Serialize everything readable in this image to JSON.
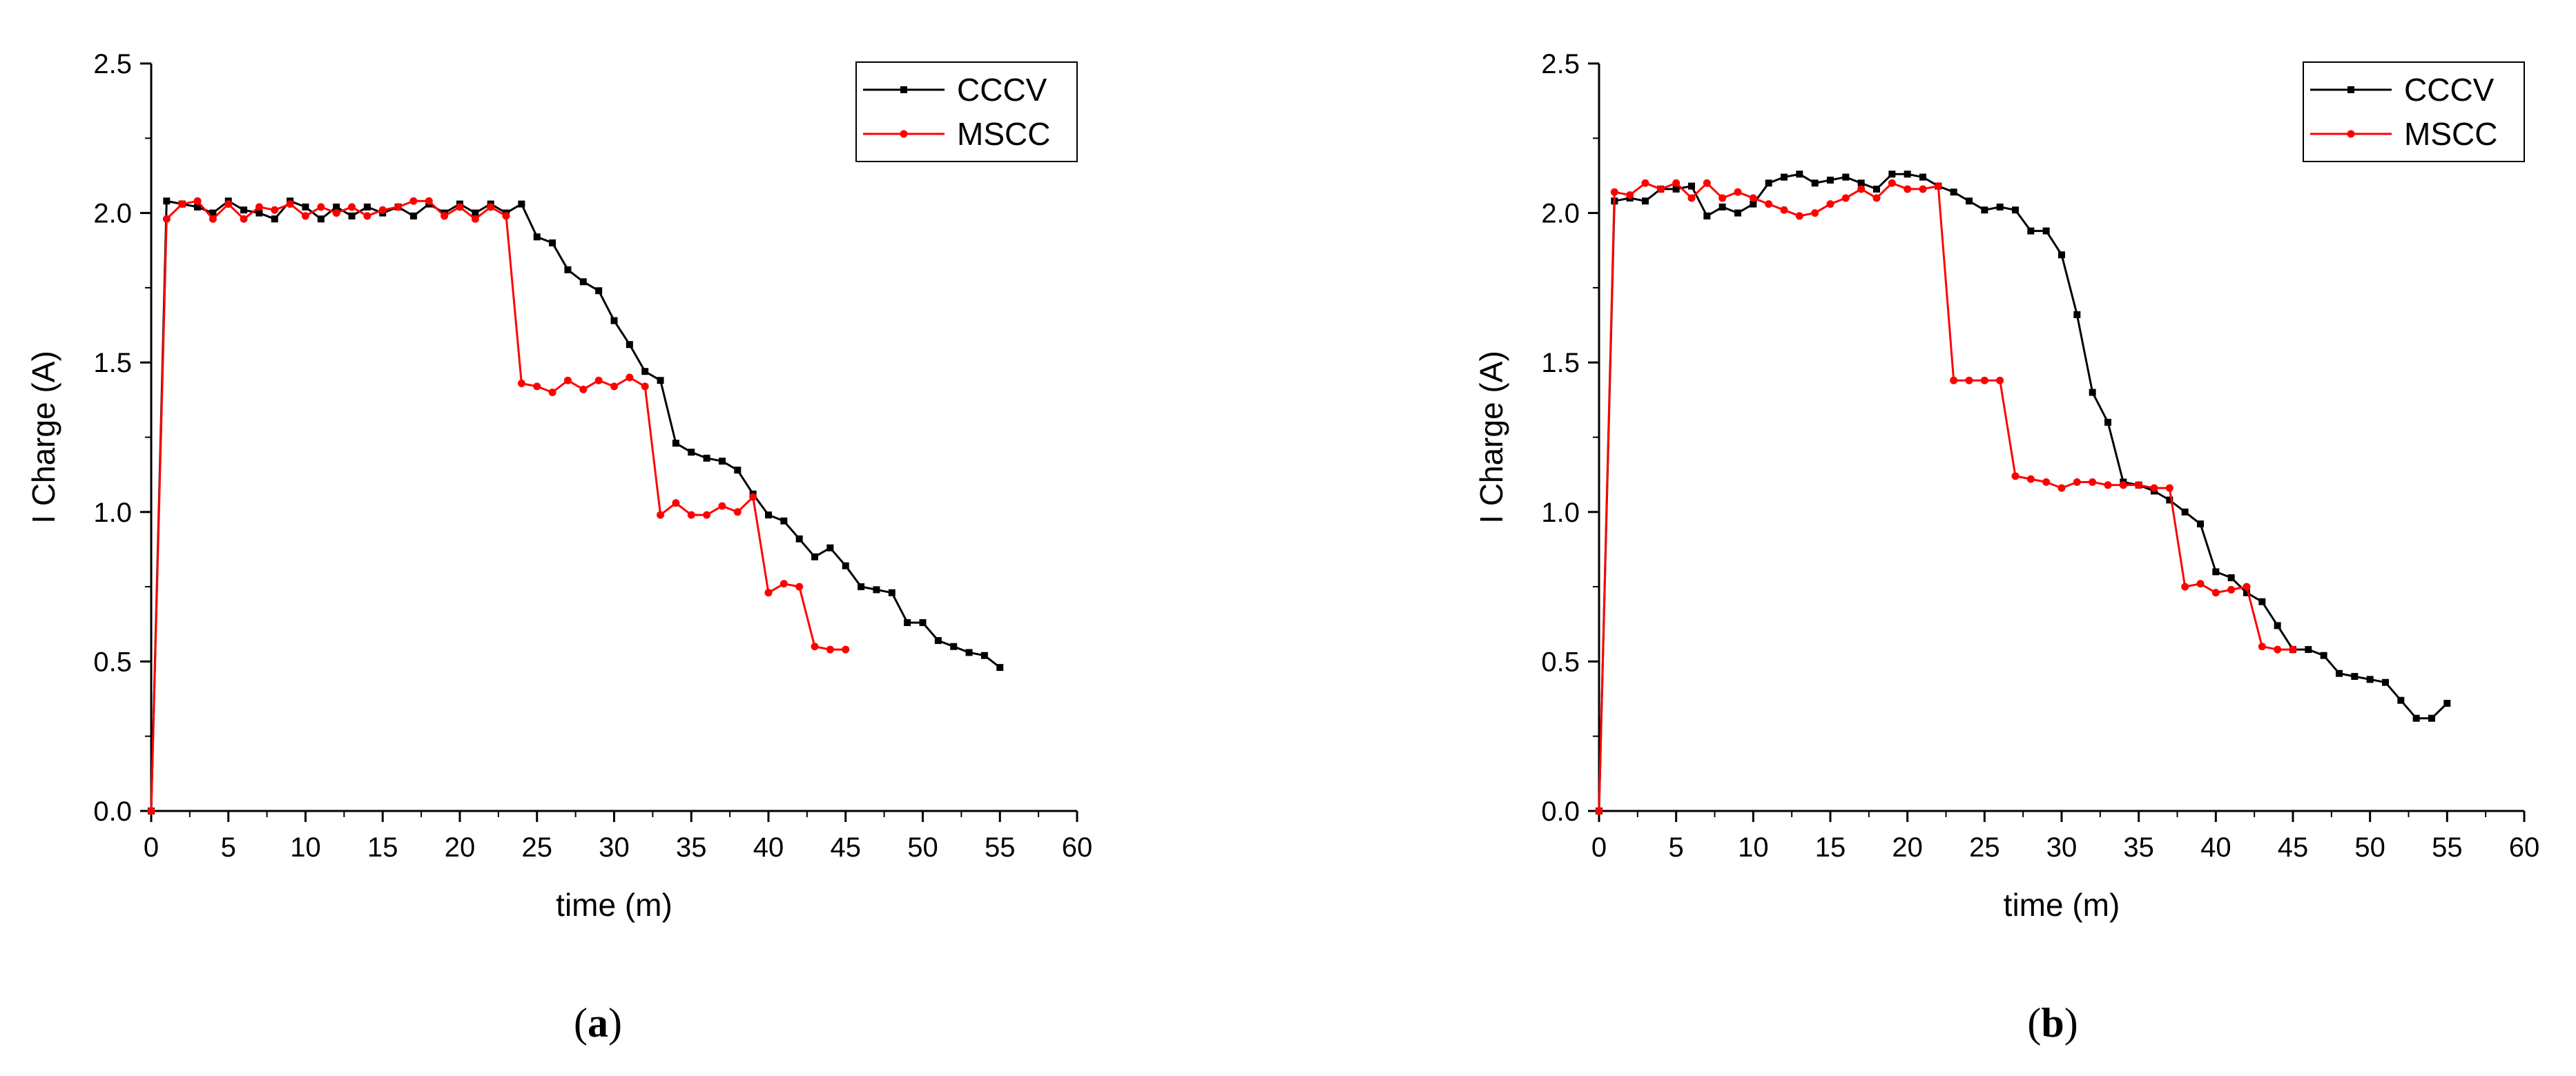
{
  "chart_data": [
    {
      "type": "line",
      "panel_label": "a",
      "title": "",
      "xlabel": "time (m)",
      "ylabel": "I Charge (A)",
      "xlim": [
        0,
        60
      ],
      "ylim": [
        0,
        2.5
      ],
      "xticks": [
        0,
        5,
        10,
        15,
        20,
        25,
        30,
        35,
        40,
        45,
        50,
        55,
        60
      ],
      "yticks": [
        0.0,
        0.5,
        1.0,
        1.5,
        2.0,
        2.5
      ],
      "ytick_labels": [
        "0.0",
        "0.5",
        "1.0",
        "1.5",
        "2.0",
        "2.5"
      ],
      "legend_position": "top-right",
      "grid": false,
      "series": [
        {
          "name": "CCCV",
          "color": "#000000",
          "marker": "square",
          "x": [
            0,
            1,
            2,
            3,
            4,
            5,
            6,
            7,
            8,
            9,
            10,
            11,
            12,
            13,
            14,
            15,
            16,
            17,
            18,
            19,
            20,
            21,
            22,
            23,
            24,
            25,
            26,
            27,
            28,
            29,
            30,
            31,
            32,
            33,
            34,
            35,
            36,
            37,
            38,
            39,
            40,
            41,
            42,
            43,
            44,
            45,
            46,
            47,
            48,
            49,
            50,
            51,
            52,
            53,
            54,
            55
          ],
          "y": [
            0.0,
            2.04,
            2.03,
            2.02,
            2.0,
            2.04,
            2.01,
            2.0,
            1.98,
            2.04,
            2.02,
            1.98,
            2.02,
            1.99,
            2.02,
            2.0,
            2.02,
            1.99,
            2.03,
            2.0,
            2.03,
            2.0,
            2.03,
            2.0,
            2.03,
            1.92,
            1.9,
            1.81,
            1.77,
            1.74,
            1.64,
            1.56,
            1.47,
            1.44,
            1.23,
            1.2,
            1.18,
            1.17,
            1.14,
            1.06,
            0.99,
            0.97,
            0.91,
            0.85,
            0.88,
            0.82,
            0.75,
            0.74,
            0.73,
            0.63,
            0.63,
            0.57,
            0.55,
            0.53,
            0.52,
            0.48
          ]
        },
        {
          "name": "MSCC",
          "color": "#ff0000",
          "marker": "circle",
          "x": [
            0,
            1,
            2,
            3,
            4,
            5,
            6,
            7,
            8,
            9,
            10,
            11,
            12,
            13,
            14,
            15,
            16,
            17,
            18,
            19,
            20,
            21,
            22,
            23,
            24,
            25,
            26,
            27,
            28,
            29,
            30,
            31,
            32,
            33,
            34,
            35,
            36,
            37,
            38,
            39,
            40,
            41,
            42,
            43,
            44,
            45
          ],
          "y": [
            0.0,
            1.98,
            2.03,
            2.04,
            1.98,
            2.03,
            1.98,
            2.02,
            2.01,
            2.03,
            1.99,
            2.02,
            2.0,
            2.02,
            1.99,
            2.01,
            2.02,
            2.04,
            2.04,
            1.99,
            2.02,
            1.98,
            2.02,
            1.99,
            1.43,
            1.42,
            1.4,
            1.44,
            1.41,
            1.44,
            1.42,
            1.45,
            1.42,
            0.99,
            1.03,
            0.99,
            0.99,
            1.02,
            1.0,
            1.05,
            0.73,
            0.76,
            0.75,
            0.55,
            0.54,
            0.54
          ]
        }
      ]
    },
    {
      "type": "line",
      "panel_label": "b",
      "title": "",
      "xlabel": "time (m)",
      "ylabel": "I Charge (A)",
      "xlim": [
        0,
        60
      ],
      "ylim": [
        0,
        2.5
      ],
      "xticks": [
        0,
        5,
        10,
        15,
        20,
        25,
        30,
        35,
        40,
        45,
        50,
        55,
        60
      ],
      "yticks": [
        0.0,
        0.5,
        1.0,
        1.5,
        2.0,
        2.5
      ],
      "ytick_labels": [
        "0.0",
        "0.5",
        "1.0",
        "1.5",
        "2.0",
        "2.5"
      ],
      "legend_position": "top-right",
      "grid": false,
      "series": [
        {
          "name": "CCCV",
          "color": "#000000",
          "marker": "square",
          "x": [
            0,
            1,
            2,
            3,
            4,
            5,
            6,
            7,
            8,
            9,
            10,
            11,
            12,
            13,
            14,
            15,
            16,
            17,
            18,
            19,
            20,
            21,
            22,
            23,
            24,
            25,
            26,
            27,
            28,
            29,
            30,
            31,
            32,
            33,
            34,
            35,
            36,
            37,
            38,
            39,
            40,
            41,
            42,
            43,
            44,
            45,
            46,
            47,
            48,
            49,
            50,
            51,
            52,
            53,
            54,
            55
          ],
          "y": [
            0.0,
            2.04,
            2.05,
            2.04,
            2.08,
            2.08,
            2.09,
            1.99,
            2.02,
            2.0,
            2.03,
            2.1,
            2.12,
            2.13,
            2.1,
            2.11,
            2.12,
            2.1,
            2.08,
            2.13,
            2.13,
            2.12,
            2.09,
            2.07,
            2.04,
            2.01,
            2.02,
            2.01,
            1.94,
            1.94,
            1.86,
            1.66,
            1.4,
            1.3,
            1.1,
            1.09,
            1.07,
            1.04,
            1.0,
            0.96,
            0.8,
            0.78,
            0.73,
            0.7,
            0.62,
            0.54,
            0.54,
            0.52,
            0.46,
            0.45,
            0.44,
            0.43,
            0.37,
            0.31,
            0.31,
            0.36
          ]
        },
        {
          "name": "MSCC",
          "color": "#ff0000",
          "marker": "circle",
          "x": [
            0,
            1,
            2,
            3,
            4,
            5,
            6,
            7,
            8,
            9,
            10,
            11,
            12,
            13,
            14,
            15,
            16,
            17,
            18,
            19,
            20,
            21,
            22,
            23,
            24,
            25,
            26,
            27,
            28,
            29,
            30,
            31,
            32,
            33,
            34,
            35,
            36,
            37,
            38,
            39,
            40,
            41,
            42,
            43,
            44,
            45
          ],
          "y": [
            0.0,
            2.07,
            2.06,
            2.1,
            2.08,
            2.1,
            2.05,
            2.1,
            2.05,
            2.07,
            2.05,
            2.03,
            2.01,
            1.99,
            2.0,
            2.03,
            2.05,
            2.08,
            2.05,
            2.1,
            2.08,
            2.08,
            2.09,
            1.44,
            1.44,
            1.44,
            1.44,
            1.12,
            1.11,
            1.1,
            1.08,
            1.1,
            1.1,
            1.09,
            1.09,
            1.09,
            1.08,
            1.08,
            0.75,
            0.76,
            0.73,
            0.74,
            0.75,
            0.55,
            0.54,
            0.54
          ]
        }
      ]
    }
  ]
}
